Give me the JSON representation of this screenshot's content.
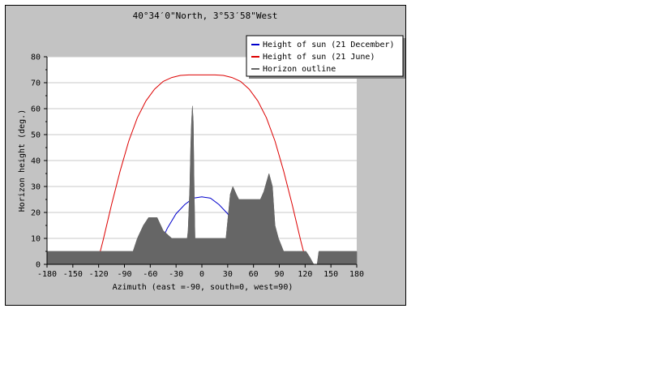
{
  "chart_data": {
    "type": "line",
    "title": "40°34′0\"North, 3°53′58\"West",
    "xlabel": "Azimuth (east =-90, south=0, west=90)",
    "ylabel": "Horizon height (deg.)",
    "xlim": [
      -180,
      180
    ],
    "ylim": [
      0,
      80
    ],
    "x_ticks": [
      -180,
      -150,
      -120,
      -90,
      -60,
      -30,
      0,
      30,
      60,
      90,
      120,
      150,
      180
    ],
    "y_ticks": [
      0,
      10,
      20,
      30,
      40,
      50,
      60,
      70,
      80
    ],
    "grid": true,
    "legend_position": "top-right",
    "series": [
      {
        "name": "Height of sun (21 December)",
        "color": "#0000cc",
        "style": "line",
        "x": [
          -58,
          -50,
          -40,
          -30,
          -20,
          -10,
          0,
          10,
          20,
          30,
          40,
          50,
          58
        ],
        "y": [
          0,
          7,
          14,
          19.5,
          23,
          25.5,
          26,
          25.5,
          23,
          19.5,
          14,
          7,
          0
        ]
      },
      {
        "name": "Height of sun (21 June)",
        "color": "#dd0000",
        "style": "line",
        "x": [
          -122,
          -115,
          -105,
          -95,
          -85,
          -75,
          -65,
          -55,
          -45,
          -35,
          -25,
          -15,
          -5,
          0,
          5,
          15,
          25,
          35,
          45,
          55,
          65,
          75,
          85,
          95,
          105,
          115,
          122
        ],
        "y": [
          0,
          9,
          23,
          36,
          47.5,
          56.5,
          63,
          67.5,
          70.5,
          72,
          72.8,
          73,
          73,
          73,
          73,
          73,
          72.8,
          72,
          70.5,
          67.5,
          63,
          56.5,
          47.5,
          36,
          23,
          9,
          0
        ]
      },
      {
        "name": "Horizon outline",
        "color": "#666666",
        "style": "area",
        "x": [
          -180,
          -80,
          -75,
          -68,
          -62,
          -52,
          -45,
          -35,
          -25,
          -17,
          -16,
          -14,
          -13,
          -12,
          -11,
          -10,
          -9,
          -8,
          5,
          20,
          28,
          31,
          33,
          36,
          40,
          43,
          48,
          58,
          64,
          68,
          72,
          78,
          82,
          85,
          89,
          95,
          110,
          117,
          121,
          125,
          130,
          134,
          136,
          140,
          160,
          180
        ],
        "y": [
          5,
          5,
          10,
          15,
          18,
          18,
          13,
          10,
          10,
          10,
          13,
          30,
          45,
          55,
          61,
          55,
          30,
          10,
          10,
          10,
          10,
          20,
          27,
          30,
          27,
          25,
          25,
          25,
          25,
          25,
          28,
          35,
          30,
          15,
          10,
          5,
          5,
          5,
          5,
          3,
          0,
          0,
          5,
          5,
          5,
          5
        ]
      }
    ]
  }
}
